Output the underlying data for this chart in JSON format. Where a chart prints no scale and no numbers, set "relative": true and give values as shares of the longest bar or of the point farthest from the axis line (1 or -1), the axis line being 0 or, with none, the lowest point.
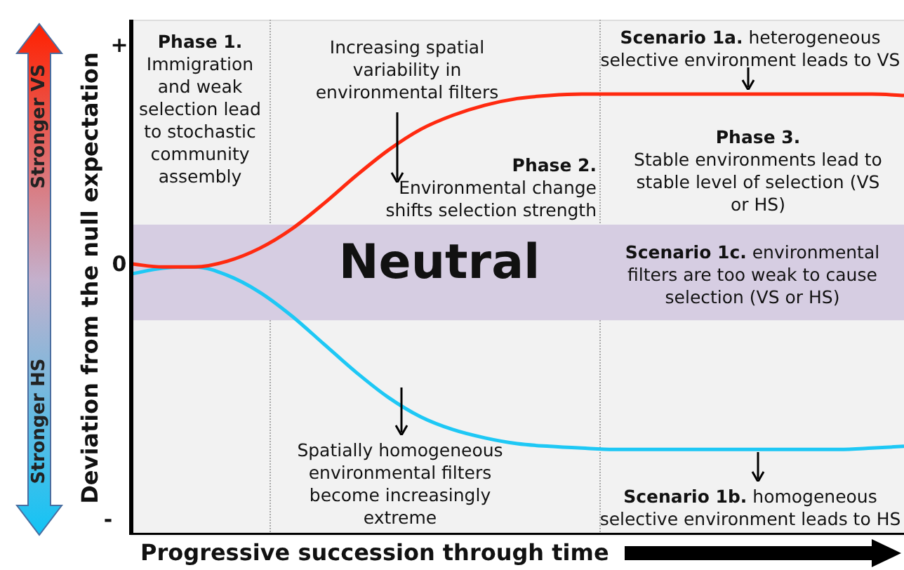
{
  "chart_data": {
    "type": "line",
    "relative": true,
    "xlabel": "Progressive succession through time",
    "ylabel": "Deviation from the null expectation",
    "categories": [
      null,
      null,
      null,
      null,
      null,
      null,
      null,
      null,
      null,
      null,
      null,
      null,
      null,
      null,
      null,
      null,
      null,
      null,
      null,
      null,
      null,
      null,
      null,
      null,
      null
    ],
    "series": [
      {
        "color": "#ff2a10",
        "values": [
          0.615,
          0.608,
          0.608,
          0.621,
          0.65,
          0.694,
          0.752,
          0.815,
          0.873,
          0.92,
          0.952,
          0.975,
          0.99,
          0.997,
          1,
          1,
          1,
          1,
          1,
          1,
          1,
          1,
          1,
          1,
          0.997
        ]
      },
      {
        "color": "#1ec8f5",
        "values": [
          0.592,
          0.605,
          0.608,
          0.589,
          0.551,
          0.497,
          0.433,
          0.369,
          0.312,
          0.268,
          0.239,
          0.22,
          0.207,
          0.201,
          0.197,
          0.194,
          0.194,
          0.194,
          0.194,
          0.194,
          0.194,
          0.194,
          0.194,
          0.197,
          0.201
        ]
      }
    ],
    "bands": [
      {
        "axis": "y",
        "from": 0.487,
        "to": 0.704,
        "label": "Neutral",
        "color": "#d6cde2"
      }
    ],
    "annotations": [
      "Phase 1.",
      "Immigration and weak selection lead to stochastic community assembly",
      "Increasing spatial variability in environmental filters",
      "Phase 2.",
      "Environmental change shifts selection strength",
      "Scenario 1a.",
      "heterogeneous selective environment leads to VS",
      "Phase 3.",
      "Stable environments lead to stable level of selection (VS or HS)",
      "Scenario 1c.",
      "environmental filters are too weak to cause selection (VS or HS)",
      "Spatially homogeneous environmental filters become increasingly extreme",
      "Scenario 1b.",
      "homogeneous selective environment leads to HS",
      "+",
      "0",
      "-",
      "Stronger VS",
      "Stronger HS"
    ]
  }
}
